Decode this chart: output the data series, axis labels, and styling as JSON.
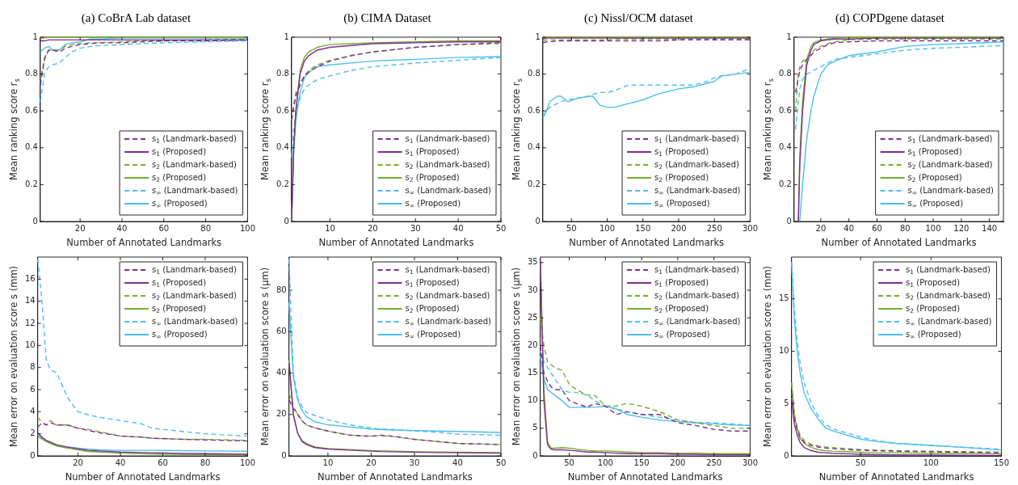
{
  "chart_data": [
    {
      "type": "line",
      "title": "(a) CoBrA Lab dataset",
      "xlabel": "Number of Annotated Landmarks",
      "ylabel": "Mean ranking score r$_{s}$",
      "legend": "bottom right",
      "xlim": [
        1,
        100
      ],
      "xticks": [
        20,
        40,
        60,
        80,
        100
      ],
      "ylim": [
        0,
        1
      ],
      "yticks": [
        0,
        0.2,
        0.4,
        0.6,
        0.8,
        1
      ],
      "x": [
        1,
        3,
        5,
        7,
        10,
        13,
        16,
        20,
        25,
        30,
        40,
        50,
        60,
        80,
        100
      ],
      "series": [
        {
          "name": "s$_{1}$ (Landmark-based)",
          "color": "#7e2f8e",
          "line_style": "dashed",
          "values": [
            0.74,
            0.88,
            0.93,
            0.93,
            0.92,
            0.94,
            0.95,
            0.96,
            0.965,
            0.97,
            0.97,
            0.975,
            0.98,
            0.98,
            0.985
          ]
        },
        {
          "name": "s$_{1}$ (Proposed)",
          "color": "#7e2f8e",
          "line_style": "solid",
          "values": [
            0.98,
            0.98,
            0.985,
            0.985,
            0.985,
            0.985,
            0.985,
            0.985,
            0.985,
            0.985,
            0.985,
            0.985,
            0.985,
            0.985,
            0.985
          ]
        },
        {
          "name": "s$_{2}$ (Landmark-based)",
          "color": "#77ac30",
          "line_style": "dashed",
          "values": [
            0.75,
            0.89,
            0.93,
            0.93,
            0.93,
            0.95,
            0.96,
            0.965,
            0.97,
            0.97,
            0.975,
            0.98,
            0.98,
            0.985,
            0.99
          ]
        },
        {
          "name": "s$_{2}$ (Proposed)",
          "color": "#77ac30",
          "line_style": "solid",
          "values": [
            0.995,
            0.995,
            1,
            1,
            1,
            1,
            1,
            1,
            1,
            1,
            1,
            1,
            1,
            1,
            1
          ]
        },
        {
          "name": "s$_{∞}$ (Landmark-based)",
          "color": "#4dbeee",
          "line_style": "dashed",
          "values": [
            0.65,
            0.8,
            0.84,
            0.85,
            0.86,
            0.89,
            0.92,
            0.94,
            0.95,
            0.955,
            0.96,
            0.965,
            0.97,
            0.975,
            0.98
          ]
        },
        {
          "name": "s$_{∞}$ (Proposed)",
          "color": "#4dbeee",
          "line_style": "solid",
          "values": [
            0.92,
            0.94,
            0.95,
            0.93,
            0.93,
            0.96,
            0.97,
            0.975,
            0.99,
            0.99,
            0.995,
            0.995,
            0.995,
            0.995,
            0.995
          ]
        }
      ]
    },
    {
      "type": "line",
      "title": "(b) CIMA Dataset",
      "xlabel": "Number of Annotated Landmarks",
      "ylabel": "Mean ranking score r$_{s}$",
      "legend": "bottom right",
      "xlim": [
        1,
        50
      ],
      "xticks": [
        10,
        20,
        30,
        40,
        50
      ],
      "ylim": [
        0,
        1
      ],
      "yticks": [
        0,
        0.2,
        0.4,
        0.6,
        0.8,
        1
      ],
      "x": [
        1,
        1.5,
        2,
        3,
        4,
        5,
        7,
        10,
        15,
        20,
        30,
        40,
        50
      ],
      "series": [
        {
          "name": "s$_{1}$ (Landmark-based)",
          "color": "#7e2f8e",
          "line_style": "dashed",
          "values": [
            0.55,
            0.62,
            0.68,
            0.74,
            0.79,
            0.81,
            0.84,
            0.87,
            0.9,
            0.92,
            0.945,
            0.96,
            0.97
          ]
        },
        {
          "name": "s$_{1}$ (Proposed)",
          "color": "#7e2f8e",
          "line_style": "solid",
          "values": [
            0,
            0.4,
            0.6,
            0.8,
            0.87,
            0.9,
            0.93,
            0.945,
            0.955,
            0.965,
            0.97,
            0.975,
            0.975
          ]
        },
        {
          "name": "s$_{2}$ (Landmark-based)",
          "color": "#77ac30",
          "line_style": "dashed",
          "values": [
            0.55,
            0.63,
            0.7,
            0.75,
            0.79,
            0.82,
            0.85,
            0.875,
            0.9,
            0.92,
            0.945,
            0.96,
            0.965
          ]
        },
        {
          "name": "s$_{2}$ (Proposed)",
          "color": "#77ac30",
          "line_style": "solid",
          "values": [
            0,
            0.4,
            0.6,
            0.82,
            0.89,
            0.92,
            0.945,
            0.96,
            0.965,
            0.97,
            0.975,
            0.98,
            0.98
          ]
        },
        {
          "name": "s$_{∞}$ (Landmark-based)",
          "color": "#4dbeee",
          "line_style": "dashed",
          "values": [
            0.35,
            0.5,
            0.6,
            0.67,
            0.72,
            0.74,
            0.77,
            0.79,
            0.82,
            0.84,
            0.86,
            0.875,
            0.89
          ]
        },
        {
          "name": "s$_{∞}$ (Proposed)",
          "color": "#4dbeee",
          "line_style": "solid",
          "values": [
            0,
            0.38,
            0.55,
            0.7,
            0.78,
            0.81,
            0.84,
            0.85,
            0.86,
            0.87,
            0.88,
            0.89,
            0.895
          ]
        }
      ]
    },
    {
      "type": "line",
      "title": "(c) Nissl/OCM dataset",
      "xlabel": "Number of Annotated Landmarks",
      "ylabel": "Mean ranking score r$_{s}$",
      "legend": "bottom right",
      "xlim": [
        10,
        300
      ],
      "xticks": [
        50,
        100,
        150,
        200,
        250,
        300
      ],
      "ylim": [
        0,
        1
      ],
      "yticks": [
        0,
        0.2,
        0.4,
        0.6,
        0.8,
        1
      ],
      "x": [
        10,
        15,
        20,
        30,
        35,
        45,
        60,
        75,
        80,
        90,
        100,
        110,
        130,
        150,
        170,
        200,
        220,
        240,
        250,
        260,
        280,
        300
      ],
      "series": [
        {
          "name": "s$_{1}$ (Landmark-based)",
          "color": "#7e2f8e",
          "line_style": "dashed",
          "values": [
            0.97,
            0.975,
            0.975,
            0.98,
            0.98,
            0.98,
            0.98,
            0.98,
            0.98,
            0.98,
            0.98,
            0.98,
            0.98,
            0.98,
            0.98,
            0.985,
            0.985,
            0.985,
            0.985,
            0.985,
            0.985,
            0.985
          ]
        },
        {
          "name": "s$_{1}$ (Proposed)",
          "color": "#7e2f8e",
          "line_style": "solid",
          "values": [
            0.99,
            0.995,
            0.995,
            0.995,
            0.995,
            0.995,
            0.995,
            0.995,
            0.995,
            0.995,
            0.995,
            0.995,
            0.995,
            0.995,
            0.995,
            0.995,
            0.995,
            0.995,
            0.995,
            0.995,
            0.995,
            0.995
          ]
        },
        {
          "name": "s$_{2}$ (Landmark-based)",
          "color": "#77ac30",
          "line_style": "dashed",
          "values": [
            0.98,
            0.985,
            0.985,
            0.985,
            0.985,
            0.985,
            0.985,
            0.985,
            0.985,
            0.985,
            0.985,
            0.99,
            0.99,
            0.99,
            0.99,
            0.99,
            0.99,
            0.99,
            0.99,
            0.99,
            0.99,
            0.99
          ]
        },
        {
          "name": "s$_{2}$ (Proposed)",
          "color": "#77ac30",
          "line_style": "solid",
          "values": [
            1,
            1,
            1,
            1,
            1,
            1,
            1,
            1,
            1,
            1,
            1,
            1,
            1,
            1,
            1,
            1,
            1,
            1,
            1,
            1,
            1,
            1
          ]
        },
        {
          "name": "s$_{∞}$ (Landmark-based)",
          "color": "#4dbeee",
          "line_style": "dashed",
          "values": [
            0.57,
            0.6,
            0.62,
            0.64,
            0.65,
            0.66,
            0.67,
            0.68,
            0.69,
            0.7,
            0.7,
            0.71,
            0.74,
            0.74,
            0.74,
            0.74,
            0.74,
            0.76,
            0.78,
            0.79,
            0.8,
            0.83
          ]
        },
        {
          "name": "s$_{∞}$ (Proposed)",
          "color": "#4dbeee",
          "line_style": "solid",
          "values": [
            0.56,
            0.6,
            0.65,
            0.68,
            0.68,
            0.65,
            0.67,
            0.68,
            0.68,
            0.63,
            0.62,
            0.62,
            0.64,
            0.66,
            0.69,
            0.72,
            0.73,
            0.75,
            0.76,
            0.79,
            0.8,
            0.81
          ]
        }
      ]
    },
    {
      "type": "line",
      "title": "(d) COPDgene dataset",
      "xlabel": "Number of Annotated Landmarks",
      "ylabel": "Mean ranking score r$_{s}$",
      "legend": "bottom right",
      "xlim": [
        1,
        150
      ],
      "xticks": [
        20,
        40,
        60,
        80,
        100,
        120,
        140
      ],
      "ylim": [
        0,
        1
      ],
      "yticks": [
        0,
        0.2,
        0.4,
        0.6,
        0.8,
        1
      ],
      "x": [
        2,
        4,
        5,
        7,
        10,
        13,
        15,
        20,
        25,
        30,
        40,
        60,
        80,
        100,
        120,
        150
      ],
      "series": [
        {
          "name": "s$_{1}$ (Landmark-based)",
          "color": "#7e2f8e",
          "line_style": "dashed",
          "values": [
            0.7,
            0.78,
            0.82,
            0.85,
            0.88,
            0.9,
            0.92,
            0.94,
            0.96,
            0.97,
            0.975,
            0.98,
            0.98,
            0.98,
            0.98,
            0.98
          ]
        },
        {
          "name": "s$_{1}$ (Proposed)",
          "color": "#7e2f8e",
          "line_style": "solid",
          "values": [
            null,
            0,
            0.3,
            0.6,
            0.85,
            0.93,
            0.96,
            0.98,
            0.985,
            0.99,
            0.99,
            0.995,
            0.995,
            0.995,
            0.995,
            0.995
          ]
        },
        {
          "name": "s$_{2}$ (Landmark-based)",
          "color": "#77ac30",
          "line_style": "dashed",
          "values": [
            0.6,
            0.8,
            0.84,
            0.87,
            0.89,
            0.91,
            0.93,
            0.95,
            0.965,
            0.975,
            0.985,
            0.99,
            0.99,
            0.99,
            0.99,
            0.99
          ]
        },
        {
          "name": "s$_{2}$ (Proposed)",
          "color": "#77ac30",
          "line_style": "solid",
          "values": [
            null,
            0,
            0.35,
            0.65,
            0.88,
            0.95,
            0.97,
            0.985,
            0.99,
            0.995,
            1,
            1,
            1,
            1,
            1,
            1
          ]
        },
        {
          "name": "s$_{∞}$ (Landmark-based)",
          "color": "#4dbeee",
          "line_style": "dashed",
          "values": [
            0.5,
            0.65,
            0.72,
            0.77,
            0.8,
            0.81,
            0.82,
            0.84,
            0.86,
            0.88,
            0.89,
            0.91,
            0.93,
            0.94,
            0.945,
            0.955
          ]
        },
        {
          "name": "s$_{∞}$ (Proposed)",
          "color": "#4dbeee",
          "line_style": "solid",
          "values": [
            null,
            null,
            0,
            0.2,
            0.45,
            0.6,
            0.68,
            0.8,
            0.85,
            0.87,
            0.9,
            0.92,
            0.95,
            0.96,
            0.965,
            0.975
          ]
        }
      ]
    },
    {
      "type": "line",
      "xlabel": "Number of Annotated Landmarks",
      "ylabel": "Mean error on evaluation score s (mm)",
      "legend": "top right",
      "xlim": [
        1,
        100
      ],
      "xticks": [
        20,
        40,
        60,
        80,
        100
      ],
      "ylim": [
        0,
        18
      ],
      "yticks": [
        0,
        2,
        4,
        6,
        8,
        10,
        12,
        14,
        16
      ],
      "x": [
        1,
        3,
        5,
        7,
        10,
        15,
        20,
        25,
        30,
        40,
        50,
        55,
        70,
        80,
        100
      ],
      "series": [
        {
          "name": "s$_{1}$ (Landmark-based)",
          "color": "#7e2f8e",
          "line_style": "dashed",
          "values": [
            2.6,
            3.0,
            2.8,
            3.0,
            2.8,
            2.8,
            2.5,
            2.3,
            2.1,
            1.8,
            1.7,
            1.6,
            1.5,
            1.45,
            1.35
          ]
        },
        {
          "name": "s$_{1}$ (Proposed)",
          "color": "#7e2f8e",
          "line_style": "solid",
          "values": [
            2.1,
            1.7,
            1.4,
            1.25,
            1.0,
            0.8,
            0.65,
            0.5,
            0.45,
            0.35,
            0.3,
            0.28,
            0.22,
            0.2,
            0.15
          ]
        },
        {
          "name": "s$_{2}$ (Landmark-based)",
          "color": "#77ac30",
          "line_style": "dashed",
          "values": [
            3.5,
            3.0,
            2.8,
            3.2,
            2.8,
            2.8,
            2.5,
            2.4,
            2.2,
            1.8,
            1.7,
            1.6,
            1.5,
            1.5,
            1.4
          ]
        },
        {
          "name": "s$_{2}$ (Proposed)",
          "color": "#77ac30",
          "line_style": "solid",
          "values": [
            1.8,
            1.5,
            1.3,
            1.1,
            0.9,
            0.7,
            0.55,
            0.4,
            0.35,
            0.25,
            0.2,
            0.18,
            0.12,
            0.1,
            0.08
          ]
        },
        {
          "name": "s$_{∞}$ (Landmark-based)",
          "color": "#4dbeee",
          "line_style": "dashed",
          "values": [
            17.8,
            14,
            8.7,
            7.8,
            7.5,
            5.3,
            4.0,
            3.7,
            3.5,
            3.2,
            2.9,
            2.5,
            2.2,
            2.0,
            1.8
          ]
        },
        {
          "name": "s$_{∞}$ (Proposed)",
          "color": "#4dbeee",
          "line_style": "solid",
          "values": [
            2.0,
            1.6,
            1.4,
            1.2,
            1.0,
            0.8,
            0.7,
            0.6,
            0.55,
            0.5,
            0.5,
            0.5,
            0.48,
            0.45,
            0.42
          ]
        }
      ]
    },
    {
      "type": "line",
      "xlabel": "Number of Annotated Landmarks",
      "ylabel": "Mean error on evaluation score s (μm)",
      "legend": "top right",
      "xlim": [
        1,
        50
      ],
      "xticks": [
        10,
        20,
        30,
        40,
        50
      ],
      "ylim": [
        0,
        96
      ],
      "yticks": [
        0,
        20,
        40,
        60,
        80
      ],
      "x": [
        1,
        2,
        3,
        4,
        5,
        7,
        10,
        15,
        20,
        22,
        25,
        30,
        35,
        40,
        50
      ],
      "series": [
        {
          "name": "s$_{1}$ (Landmark-based)",
          "color": "#7e2f8e",
          "line_style": "dashed",
          "values": [
            27,
            23,
            20,
            17,
            15,
            13.5,
            12,
            10,
            9.5,
            10,
            9.5,
            8,
            7,
            6,
            5.5
          ]
        },
        {
          "name": "s$_{1}$ (Proposed)",
          "color": "#7e2f8e",
          "line_style": "solid",
          "values": [
            45,
            20,
            11,
            7,
            5.5,
            4,
            3.3,
            2.8,
            2.3,
            2.1,
            2,
            1.8,
            1.6,
            1.5,
            1.3
          ]
        },
        {
          "name": "s$_{2}$ (Landmark-based)",
          "color": "#77ac30",
          "line_style": "dashed",
          "values": [
            30,
            24,
            20,
            17,
            15,
            13.5,
            12,
            10,
            9.5,
            9.8,
            9.4,
            8,
            7,
            6,
            5.5
          ]
        },
        {
          "name": "s$_{2}$ (Proposed)",
          "color": "#77ac30",
          "line_style": "solid",
          "values": [
            46,
            20,
            11,
            7.5,
            6,
            4.3,
            3.5,
            3,
            2.6,
            2.5,
            2.3,
            2,
            1.9,
            1.8,
            1.6
          ]
        },
        {
          "name": "s$_{∞}$ (Landmark-based)",
          "color": "#4dbeee",
          "line_style": "dashed",
          "values": [
            95,
            40,
            28,
            24,
            21,
            19.5,
            17.5,
            15,
            13.5,
            13,
            12.8,
            12,
            11.5,
            10.5,
            10
          ]
        },
        {
          "name": "s$_{∞}$ (Proposed)",
          "color": "#4dbeee",
          "line_style": "solid",
          "values": [
            74,
            38,
            27,
            22,
            19,
            16.5,
            15,
            14,
            13,
            12.8,
            12.5,
            12.2,
            12,
            11.8,
            11.3
          ]
        }
      ]
    },
    {
      "type": "line",
      "xlabel": "Number of Annotated Landmarks",
      "ylabel": "Mean error on evaluation score s (μm)",
      "legend": "top right",
      "xlim": [
        10,
        300
      ],
      "xticks": [
        50,
        100,
        150,
        200,
        250,
        300
      ],
      "ylim": [
        0,
        36
      ],
      "yticks": [
        0,
        5,
        10,
        15,
        20,
        25,
        30,
        35
      ],
      "x": [
        10,
        15,
        20,
        25,
        30,
        40,
        50,
        60,
        75,
        85,
        100,
        115,
        130,
        150,
        175,
        200,
        225,
        250,
        275,
        300
      ],
      "series": [
        {
          "name": "s$_{1}$ (Landmark-based)",
          "color": "#7e2f8e",
          "line_style": "dashed",
          "values": [
            20,
            15,
            13.5,
            12.5,
            12,
            12,
            10,
            9.5,
            8.8,
            9.5,
            9,
            7.5,
            8,
            7.5,
            7.5,
            6,
            5.5,
            4.8,
            4.5,
            4.5
          ]
        },
        {
          "name": "s$_{1}$ (Proposed)",
          "color": "#7e2f8e",
          "line_style": "solid",
          "values": [
            36,
            10,
            2,
            1.2,
            1.1,
            1.1,
            1,
            0.9,
            0.7,
            0.7,
            0.6,
            0.5,
            0.4,
            0.4,
            0.4,
            0.3,
            0.3,
            0.2,
            0.2,
            0.2
          ]
        },
        {
          "name": "s$_{2}$ (Landmark-based)",
          "color": "#77ac30",
          "line_style": "dashed",
          "values": [
            25,
            20,
            17,
            16.5,
            16,
            15.5,
            13,
            12,
            11,
            11,
            9,
            9,
            9.5,
            9,
            8,
            6.5,
            6,
            5.5,
            5,
            5
          ]
        },
        {
          "name": "s$_{2}$ (Proposed)",
          "color": "#77ac30",
          "line_style": "solid",
          "values": [
            35,
            12,
            2.5,
            1.4,
            1.4,
            1.5,
            1.4,
            1.2,
            1,
            0.9,
            0.9,
            0.8,
            0.7,
            0.6,
            0.6,
            0.5,
            0.5,
            0.4,
            0.4,
            0.4
          ]
        },
        {
          "name": "s$_{∞}$ (Landmark-based)",
          "color": "#4dbeee",
          "line_style": "dashed",
          "values": [
            19,
            17,
            16,
            15,
            14,
            12,
            11.5,
            11.5,
            11,
            10,
            9,
            8.5,
            8,
            7.5,
            7,
            6.5,
            6,
            6,
            5.8,
            5.5
          ]
        },
        {
          "name": "s$_{∞}$ (Proposed)",
          "color": "#4dbeee",
          "line_style": "solid",
          "values": [
            18,
            14,
            12,
            11.5,
            11,
            10,
            8.8,
            8.8,
            8.8,
            8.8,
            9,
            8.5,
            7.5,
            7,
            6.5,
            6.2,
            6,
            5.8,
            5.6,
            5.5
          ]
        }
      ]
    },
    {
      "type": "line",
      "xlabel": "Number of Annotated Landmarks",
      "ylabel": "Mean error on evaluation score s (mm)",
      "legend": "top right",
      "xlim": [
        1,
        150
      ],
      "xticks": [
        50,
        100,
        150
      ],
      "ylim": [
        0,
        19
      ],
      "yticks": [
        0,
        5,
        10,
        15
      ],
      "x": [
        1,
        3,
        5,
        7,
        10,
        15,
        20,
        25,
        30,
        40,
        50,
        60,
        75,
        100,
        125,
        150
      ],
      "series": [
        {
          "name": "s$_{1}$ (Landmark-based)",
          "color": "#7e2f8e",
          "line_style": "dashed",
          "values": [
            6,
            3.5,
            2.5,
            1.8,
            1.3,
            1,
            0.85,
            0.75,
            0.7,
            0.6,
            0.55,
            0.5,
            0.45,
            0.4,
            0.35,
            0.3
          ]
        },
        {
          "name": "s$_{1}$ (Proposed)",
          "color": "#7e2f8e",
          "line_style": "solid",
          "values": [
            5.5,
            3,
            2,
            1.3,
            0.8,
            0.5,
            0.35,
            0.3,
            0.25,
            0.2,
            0.15,
            0.12,
            0.1,
            0.08,
            0.06,
            0.05
          ]
        },
        {
          "name": "s$_{2}$ (Landmark-based)",
          "color": "#77ac30",
          "line_style": "dashed",
          "values": [
            7,
            4,
            2.8,
            2,
            1.5,
            1.1,
            0.95,
            0.85,
            0.8,
            0.7,
            0.6,
            0.55,
            0.5,
            0.45,
            0.4,
            0.35
          ]
        },
        {
          "name": "s$_{2}$ (Proposed)",
          "color": "#77ac30",
          "line_style": "solid",
          "values": [
            7,
            3.8,
            2.6,
            1.7,
            1.2,
            0.8,
            0.6,
            0.5,
            0.45,
            0.4,
            0.35,
            0.3,
            0.3,
            0.25,
            0.25,
            0.2
          ]
        },
        {
          "name": "s$_{∞}$ (Landmark-based)",
          "color": "#4dbeee",
          "line_style": "dashed",
          "values": [
            18.5,
            14,
            11,
            9,
            7,
            5,
            3.8,
            3,
            2.6,
            2.2,
            1.8,
            1.5,
            1.2,
            1,
            0.8,
            0.65
          ]
        },
        {
          "name": "s$_{∞}$ (Proposed)",
          "color": "#4dbeee",
          "line_style": "solid",
          "values": [
            18.5,
            13,
            10,
            8,
            6,
            4.5,
            3.5,
            2.7,
            2.4,
            2.0,
            1.6,
            1.4,
            1.2,
            1,
            0.8,
            0.55
          ]
        }
      ]
    }
  ]
}
